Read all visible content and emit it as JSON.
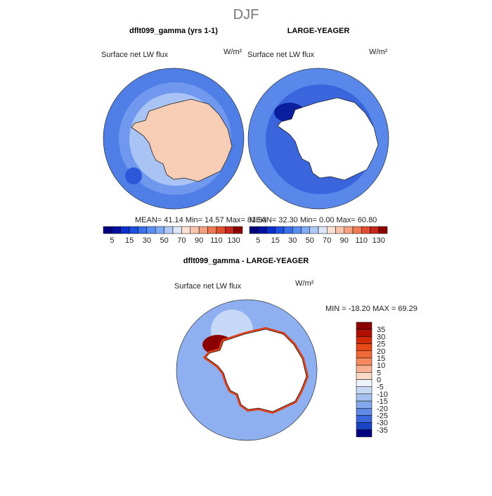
{
  "header": {
    "title": "DJF"
  },
  "panels": [
    {
      "title": "dflt099_gamma (yrs 1-1)",
      "variable": "Surface net LW flux",
      "units": "W/m²",
      "stats": "MEAN=  41.14  Min=  14.57  Max=  81.93"
    },
    {
      "title": "LARGE-YEAGER",
      "variable": "Surface net LW flux",
      "units": "W/m²",
      "stats": "MEAN=  32.30  Min=   0.00  Max=  60.80"
    },
    {
      "title": "dflt099_gamma - LARGE-YEAGER",
      "variable": "Surface net LW flux",
      "units": "W/m²",
      "stats": "MIN = -18.20 MAX =  69.29"
    }
  ],
  "colorbar": {
    "colors": [
      "#00007f",
      "#00129e",
      "#0a2fcc",
      "#1f4fe0",
      "#3a6fe8",
      "#5a8ef0",
      "#80aaf2",
      "#b0c9f5",
      "#dbe6f7",
      "#fbe0d4",
      "#f9c4ad",
      "#f4a07f",
      "#ee7a55",
      "#e05030",
      "#c4281a",
      "#8b0000"
    ],
    "labels": [
      5,
      15,
      30,
      50,
      70,
      90,
      110,
      130
    ]
  },
  "diff_colorbar": {
    "colors": [
      "#8b0000",
      "#b01000",
      "#d02a0a",
      "#e84a1a",
      "#f06a3a",
      "#f48a5e",
      "#f8b090",
      "#fbd8c4",
      "#eef3fb",
      "#c8d9f4",
      "#a6c1f0",
      "#84a8ec",
      "#5f89e6",
      "#3a68dc",
      "#1a44c4",
      "#000080"
    ],
    "labels": [
      35,
      30,
      25,
      20,
      15,
      10,
      5,
      0,
      -5,
      -10,
      -15,
      -20,
      -25,
      -30,
      -35
    ]
  }
}
